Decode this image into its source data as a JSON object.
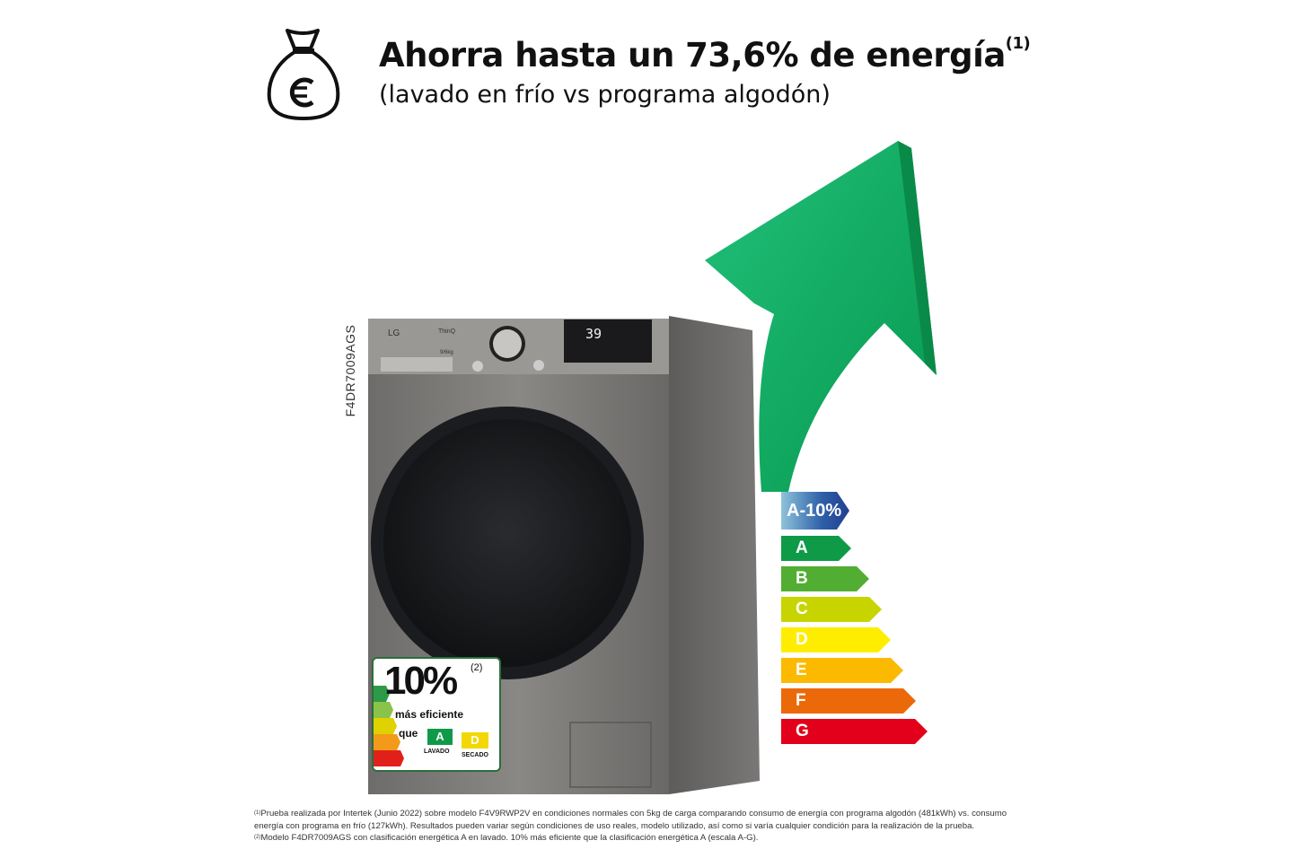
{
  "header": {
    "title": "Ahorra hasta un 73,6% de energía",
    "title_note": "(1)",
    "subtitle": "(lavado en frío vs programa algodón)",
    "icon": "money-bag-euro-icon"
  },
  "product": {
    "model": "F4DR7009AGS",
    "brand": "LG",
    "series": "ThinQ",
    "capacity": "9/6kg",
    "display_value": "39"
  },
  "badge": {
    "percent": "10%",
    "note": "(2)",
    "line1": "más eficiente",
    "line2": "que",
    "wash_class": "A",
    "wash_label": "LAVADO",
    "dry_class": "D",
    "dry_label": "SECADO"
  },
  "energy_scale": [
    {
      "label": "A-10%",
      "color": "#2d5fa8"
    },
    {
      "label": "A",
      "color": "#0f9a48"
    },
    {
      "label": "B",
      "color": "#52ae32"
    },
    {
      "label": "C",
      "color": "#c8d400"
    },
    {
      "label": "D",
      "color": "#ffed00"
    },
    {
      "label": "E",
      "color": "#fbba00"
    },
    {
      "label": "F",
      "color": "#eb6909"
    },
    {
      "label": "G",
      "color": "#e2001a"
    }
  ],
  "arrow_color": "#0fa860",
  "footnotes": [
    {
      "mark": "(1)",
      "text": "Prueba realizada por Intertek (Junio 2022) sobre modelo F4V9RWP2V en condiciones normales con 5kg de carga comparando consumo de energía con programa algodón (481kWh) vs. consumo"
    },
    {
      "mark": "",
      "text": "energía con programa en frío (127kWh). Resultados pueden variar según condiciones de uso reales, modelo utilizado, así como si varía cualquier condición para la realización de la prueba."
    },
    {
      "mark": "(2)",
      "text": "Modelo F4DR7009AGS con clasificación energética A en lavado. 10% más eficiente que la clasificación energética A (escala A-G)."
    }
  ]
}
